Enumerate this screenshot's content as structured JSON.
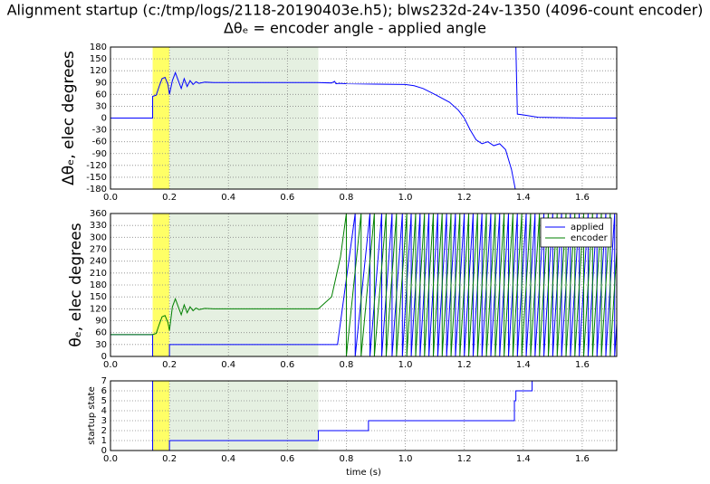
{
  "chart_data": [
    {
      "type": "line",
      "title": "Alignment startup (c:/tmp/logs/2118-20190403e.h5); blws232d-24v-1350 (4096-count encoder)",
      "subtitle": "Δθₑ =  encoder angle - applied angle",
      "ylabel": "Δθₑ, elec degrees",
      "xlim": [
        0,
        1.717
      ],
      "xticks": [
        {
          "value": 0,
          "label": "0.0"
        },
        0.2,
        0.4,
        0.6,
        0.8,
        {
          "value": 1,
          "label": "1.0"
        },
        1.2,
        1.4,
        1.6
      ],
      "ylim": [
        -180,
        180
      ],
      "yticks": [
        -180,
        -150,
        -120,
        -90,
        -60,
        -30,
        0,
        30,
        60,
        90,
        120,
        150,
        180
      ],
      "grid": true,
      "spans": [
        {
          "start": 0.143,
          "end": 0.2,
          "color": "#ffff66"
        },
        {
          "start": 0.2,
          "end": 0.705,
          "color": "#e5f0e1"
        }
      ],
      "series": [
        {
          "color": "#0000ff",
          "x": [
            0,
            0.143,
            0.143,
            0.155,
            0.165,
            0.175,
            0.185,
            0.195,
            0.2,
            0.21,
            0.22,
            0.23,
            0.24,
            0.25,
            0.26,
            0.27,
            0.28,
            0.29,
            0.3,
            0.32,
            0.35,
            0.5,
            0.7,
            0.75,
            0.76,
            0.765,
            0.775,
            0.8,
            0.9,
            1.0,
            1.03,
            1.06,
            1.1,
            1.15,
            1.18,
            1.2,
            1.22,
            1.24,
            1.26,
            1.28,
            1.3,
            1.32,
            1.34,
            1.36,
            1.373,
            1.375,
            1.375,
            1.38,
            1.4,
            1.45,
            1.6,
            1.717
          ],
          "values": [
            0,
            0,
            55,
            58,
            80,
            100,
            103,
            85,
            60,
            95,
            115,
            95,
            75,
            100,
            80,
            95,
            85,
            92,
            88,
            91,
            90,
            90,
            90,
            89,
            93,
            87,
            88,
            87,
            86,
            85,
            82,
            75,
            60,
            40,
            20,
            0,
            -30,
            -55,
            -65,
            -60,
            -70,
            -65,
            -80,
            -130,
            -180,
            null,
            180,
            10,
            8,
            2,
            0,
            0
          ]
        }
      ]
    },
    {
      "type": "line",
      "ylabel": "θₑ, elec degrees",
      "xlim": [
        0,
        1.717
      ],
      "xticks": [
        {
          "value": 0,
          "label": "0.0"
        },
        0.2,
        0.4,
        0.6,
        0.8,
        {
          "value": 1,
          "label": "1.0"
        },
        1.2,
        1.4,
        1.6
      ],
      "ylim": [
        0,
        360
      ],
      "yticks": [
        0,
        30,
        60,
        90,
        120,
        150,
        180,
        210,
        240,
        270,
        300,
        330,
        360
      ],
      "grid": true,
      "legend": "upper right",
      "spans": [
        {
          "start": 0.143,
          "end": 0.2,
          "color": "#ffff66"
        },
        {
          "start": 0.2,
          "end": 0.705,
          "color": "#e5f0e1"
        }
      ],
      "series": [
        {
          "name": "applied",
          "color": "#0000ff",
          "x": [
            0,
            0.143,
            0.143,
            0.2,
            0.2,
            0.705,
            0.77,
            0.83,
            0.83,
            0.88,
            0.88,
            0.92,
            0.92,
            0.955,
            0.955,
            0.99,
            0.99,
            1.02,
            1.02,
            1.05,
            1.05,
            1.08,
            1.08,
            1.11,
            1.11,
            1.14,
            1.14,
            1.17,
            1.17,
            1.2,
            1.2,
            1.23,
            1.23,
            1.26,
            1.26,
            1.29,
            1.29,
            1.32,
            1.32,
            1.35,
            1.35,
            1.38,
            1.38,
            1.41,
            1.41,
            1.44,
            1.44,
            1.47,
            1.47,
            1.5,
            1.5,
            1.53,
            1.53,
            1.56,
            1.56,
            1.59,
            1.59,
            1.62,
            1.62,
            1.65,
            1.65,
            1.68,
            1.68,
            1.71,
            1.71,
            1.717
          ],
          "values": [
            55,
            55,
            0,
            0,
            30,
            30,
            30,
            360,
            0,
            360,
            0,
            360,
            0,
            360,
            0,
            360,
            0,
            360,
            0,
            360,
            0,
            360,
            0,
            360,
            0,
            360,
            0,
            360,
            0,
            360,
            0,
            360,
            0,
            360,
            0,
            360,
            0,
            360,
            0,
            360,
            0,
            360,
            0,
            360,
            0,
            360,
            0,
            360,
            0,
            360,
            0,
            360,
            0,
            360,
            0,
            360,
            0,
            360,
            0,
            360,
            0,
            360,
            0,
            360,
            0,
            84
          ]
        },
        {
          "name": "encoder",
          "color": "#008000",
          "x": [
            0,
            0.143,
            0.155,
            0.165,
            0.175,
            0.185,
            0.195,
            0.2,
            0.21,
            0.22,
            0.23,
            0.24,
            0.25,
            0.26,
            0.27,
            0.28,
            0.29,
            0.3,
            0.32,
            0.35,
            0.705,
            0.75,
            0.78,
            0.8,
            0.8,
            0.85,
            0.85,
            0.895,
            0.895,
            0.935,
            0.935,
            0.97,
            0.97,
            1.005,
            1.005,
            1.035,
            1.035,
            1.065,
            1.065,
            1.095,
            1.095,
            1.125,
            1.125,
            1.155,
            1.155,
            1.185,
            1.185,
            1.215,
            1.215,
            1.245,
            1.245,
            1.275,
            1.275,
            1.305,
            1.305,
            1.335,
            1.335,
            1.365,
            1.365,
            1.395,
            1.395,
            1.425,
            1.425,
            1.455,
            1.455,
            1.485,
            1.485,
            1.515,
            1.515,
            1.545,
            1.545,
            1.575,
            1.575,
            1.605,
            1.605,
            1.635,
            1.635,
            1.665,
            1.665,
            1.695,
            1.695,
            1.717
          ],
          "values": [
            55,
            55,
            58,
            80,
            100,
            103,
            85,
            65,
            125,
            145,
            125,
            105,
            130,
            110,
            125,
            115,
            122,
            118,
            121,
            120,
            120,
            150,
            250,
            360,
            0,
            360,
            0,
            360,
            0,
            360,
            0,
            360,
            0,
            360,
            0,
            360,
            0,
            360,
            0,
            360,
            0,
            360,
            0,
            360,
            0,
            360,
            0,
            360,
            0,
            360,
            0,
            360,
            0,
            360,
            0,
            360,
            0,
            360,
            0,
            360,
            0,
            360,
            0,
            360,
            0,
            360,
            0,
            360,
            0,
            360,
            0,
            360,
            0,
            360,
            0,
            360,
            0,
            360,
            0,
            360,
            0,
            264
          ]
        }
      ]
    },
    {
      "type": "line",
      "ylabel": "startup state",
      "xlabel": "time (s)",
      "xlim": [
        0,
        1.717
      ],
      "xticks": [
        {
          "value": 0,
          "label": "0.0"
        },
        0.2,
        0.4,
        0.6,
        0.8,
        {
          "value": 1,
          "label": "1.0"
        },
        1.2,
        1.4,
        1.6
      ],
      "ylim": [
        0,
        7
      ],
      "yticks": [
        0,
        1,
        2,
        3,
        4,
        5,
        6,
        7
      ],
      "grid": true,
      "spans": [
        {
          "start": 0.143,
          "end": 0.2,
          "color": "#ffff66"
        },
        {
          "start": 0.2,
          "end": 0.705,
          "color": "#e5f0e1"
        }
      ],
      "series": [
        {
          "color": "#0000ff",
          "drawstyle": "steps-post",
          "x": [
            0,
            0.143,
            0.2,
            0.705,
            0.875,
            1.37,
            1.375,
            1.43
          ],
          "values": [
            7,
            0,
            1,
            2,
            3,
            5,
            6,
            7
          ]
        }
      ]
    }
  ]
}
